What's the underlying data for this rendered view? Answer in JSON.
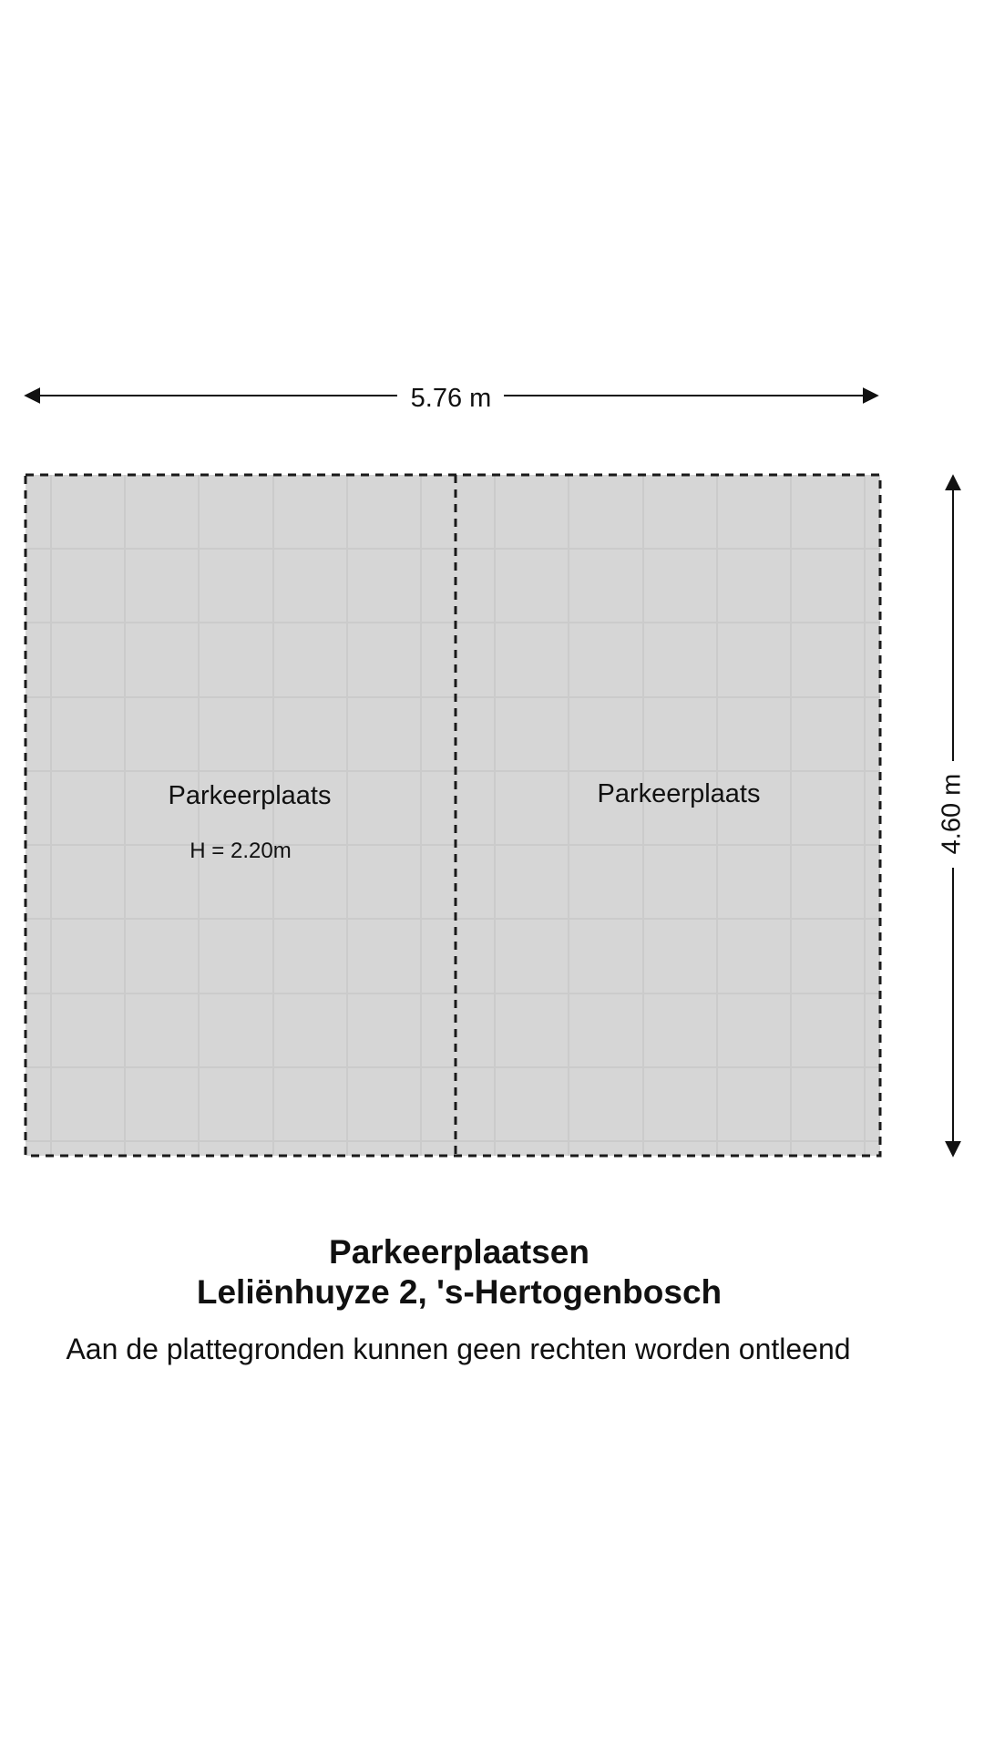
{
  "dimensions": {
    "width_label": "5.76 m",
    "height_label": "4.60 m"
  },
  "rooms": [
    {
      "label": "Parkeerplaats",
      "note": "H = 2.20m"
    },
    {
      "label": "Parkeerplaats",
      "note": ""
    }
  ],
  "caption": {
    "title": "Parkeerplaatsen",
    "address": "Leliënhuyze 2, 's-Hertogenbosch",
    "disclaimer": "Aan de plattegronden kunnen geen rechten worden ontleend"
  },
  "colors": {
    "floor_fill": "#d6d6d6",
    "tile_line": "#cbcbcb",
    "wall_dash": "#1a1a1a"
  }
}
